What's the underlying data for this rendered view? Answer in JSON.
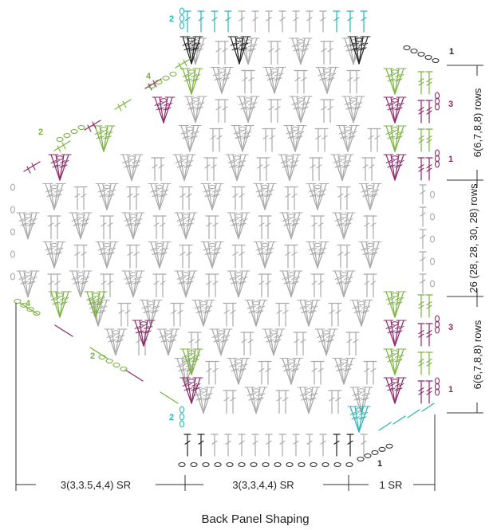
{
  "title": "Back Panel Shaping",
  "colors": {
    "grey": "#a9a9a9",
    "green": "#7cb342",
    "purple": "#8e2a6b",
    "teal": "#2bb5b8",
    "black": "#222222",
    "dim": "#333333"
  },
  "bottom_dims": [
    "3(3,3.5,4,4) SR",
    "3(3,3,4,4) SR",
    "1 SR"
  ],
  "right_dims": [
    "6(6,7,8,8) rows",
    "26 (28, 28, 30, 28) rows",
    "6(6,7,8,8) rows"
  ],
  "row_markers": {
    "top_right": [
      "1",
      "3"
    ],
    "bottom_right": [
      "3",
      "1"
    ],
    "top_left": [
      "2",
      "4"
    ],
    "bottom_left": [
      "4",
      "2"
    ],
    "top_row": "2",
    "bottom_row": "2",
    "corner_top": "1",
    "corner_bottom": "1"
  },
  "stitch_symbols": [
    "dc",
    "tr",
    "ch",
    "sc"
  ]
}
